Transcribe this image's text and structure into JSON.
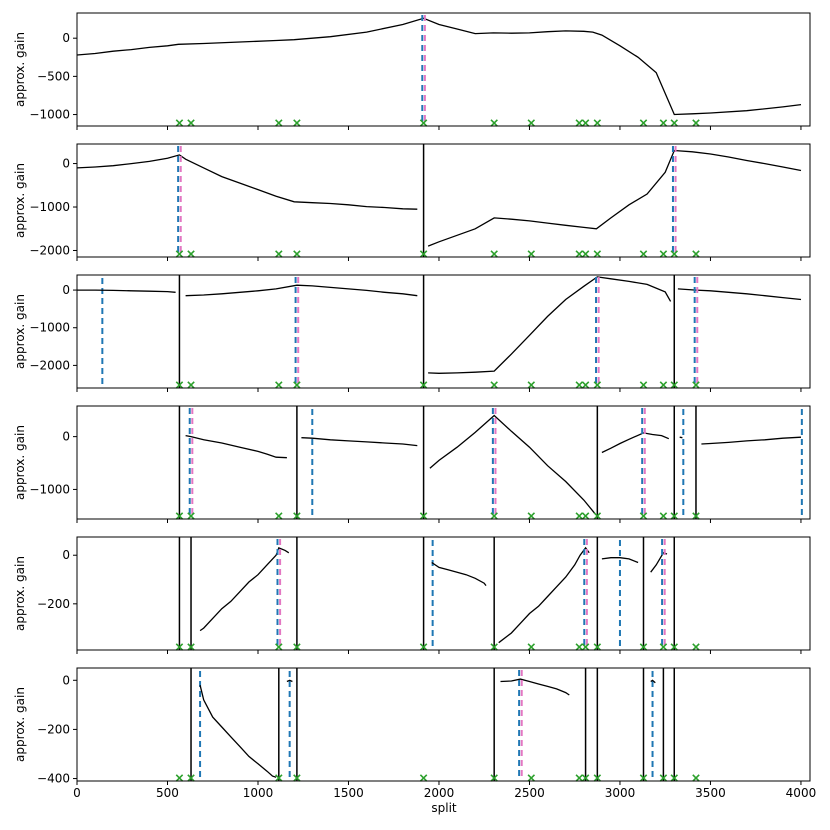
{
  "chart_data": {
    "type": "line",
    "xlabel": "split",
    "ylabel": "approx. gain",
    "xlim": [
      0,
      4050
    ],
    "xticks": [
      0,
      500,
      1000,
      1500,
      2000,
      2500,
      3000,
      3500,
      4000
    ],
    "xtick_labels": [
      "0",
      "500",
      "1000",
      "1500",
      "2000",
      "2500",
      "3000",
      "3500",
      "4000"
    ],
    "candidate_markers_x": [
      566,
      630,
      1115,
      1215,
      1915,
      2305,
      2510,
      2775,
      2810,
      2875,
      3130,
      3240,
      3300,
      3420
    ],
    "colors": {
      "gain_line": "#000000",
      "segment_boundary": "#000000",
      "blue_dashed": "#1f77b4",
      "pink_dashed": "#e377c2",
      "marker": "#2ca02c"
    },
    "panels": [
      {
        "ylim": [
          -1150,
          330
        ],
        "yticks": [
          0,
          -500,
          -1000
        ],
        "ytick_labels": [
          "0",
          "−500",
          "−1000"
        ],
        "boundaries": [],
        "selected": [
          1915
        ],
        "blue_only": [],
        "series": [
          {
            "x": [
              0,
              100,
              200,
              300,
              400,
              500,
              560,
              700,
              900,
              1100,
              1200,
              1400,
              1600,
              1800,
              1915,
              2000,
              2100,
              2200,
              2300,
              2400,
              2500,
              2600,
              2700,
              2800,
              2850,
              2900,
              3000,
              3100,
              3200,
              3300,
              3400,
              3500,
              3700,
              3900,
              4000
            ],
            "y": [
              -220,
              -200,
              -170,
              -150,
              -120,
              -100,
              -80,
              -70,
              -50,
              -30,
              -20,
              20,
              80,
              180,
              260,
              180,
              120,
              60,
              70,
              65,
              70,
              85,
              95,
              90,
              80,
              40,
              -100,
              -250,
              -450,
              -1000,
              -990,
              -980,
              -950,
              -900,
              -870
            ]
          }
        ]
      },
      {
        "ylim": [
          -2150,
          450
        ],
        "yticks": [
          0,
          -1000,
          -2000
        ],
        "ytick_labels": [
          "0",
          "−1000",
          "−2000"
        ],
        "boundaries": [
          1915
        ],
        "selected": [
          566,
          3300
        ],
        "blue_only": [],
        "series": [
          {
            "x": [
              0,
              100,
              200,
              300,
              400,
              500,
              566,
              600,
              700,
              800,
              900,
              1000,
              1100,
              1200,
              1300,
              1400,
              1500,
              1600,
              1700,
              1800,
              1880
            ],
            "y": [
              -100,
              -80,
              -50,
              0,
              50,
              120,
              200,
              100,
              -100,
              -300,
              -450,
              -600,
              -750,
              -880,
              -900,
              -920,
              -950,
              -990,
              -1010,
              -1040,
              -1050
            ]
          },
          {
            "x": [
              1940,
              2000,
              2100,
              2200,
              2305,
              2400,
              2500,
              2600,
              2700,
              2800,
              2870,
              2950,
              3050,
              3150,
              3250,
              3300,
              3400,
              3500,
              3600,
              3700,
              3800,
              3900,
              4000
            ],
            "y": [
              -1900,
              -1800,
              -1650,
              -1500,
              -1250,
              -1280,
              -1320,
              -1370,
              -1420,
              -1470,
              -1500,
              -1250,
              -950,
              -700,
              -200,
              300,
              270,
              220,
              150,
              70,
              0,
              -80,
              -160
            ]
          }
        ]
      },
      {
        "ylim": [
          -2600,
          400
        ],
        "yticks": [
          0,
          -1000,
          -2000
        ],
        "ytick_labels": [
          "0",
          "−1000",
          "−2000"
        ],
        "boundaries": [
          566,
          1915,
          3300
        ],
        "selected": [
          1215,
          2875,
          3420
        ],
        "blue_only": [
          140
        ],
        "series": [
          {
            "x": [
              0,
              100,
              200,
              300,
              400,
              500,
              545
            ],
            "y": [
              0,
              0,
              -10,
              -20,
              -30,
              -40,
              -60
            ]
          },
          {
            "x": [
              600,
              700,
              800,
              900,
              1000,
              1100,
              1215,
              1300,
              1400,
              1500,
              1600,
              1700,
              1800,
              1880
            ],
            "y": [
              -150,
              -130,
              -100,
              -60,
              -20,
              30,
              130,
              110,
              70,
              30,
              -10,
              -60,
              -100,
              -150
            ]
          },
          {
            "x": [
              1940,
              2000,
              2100,
              2200,
              2305,
              2400,
              2500,
              2600,
              2700,
              2800,
              2875,
              2950,
              3050,
              3150,
              3250,
              3280
            ],
            "y": [
              -2200,
              -2210,
              -2200,
              -2180,
              -2150,
              -1700,
              -1200,
              -700,
              -250,
              100,
              350,
              300,
              230,
              150,
              -50,
              -300
            ]
          },
          {
            "x": [
              3320,
              3420,
              3500,
              3600,
              3700,
              3800,
              3900,
              4000
            ],
            "y": [
              30,
              0,
              -20,
              -60,
              -100,
              -150,
              -200,
              -250
            ]
          }
        ]
      },
      {
        "ylim": [
          -1560,
          580
        ],
        "yticks": [
          0,
          -1000
        ],
        "ytick_labels": [
          "0",
          "−1000"
        ],
        "boundaries": [
          566,
          1215,
          1915,
          2875,
          3300,
          3420
        ],
        "selected": [
          630,
          2305,
          3130
        ],
        "blue_only": [
          1300,
          3350,
          4005
        ],
        "series": [
          {
            "x": [
              600,
              630,
              700,
              800,
              900,
              1000,
              1050,
              1100,
              1160
            ],
            "y": [
              20,
              0,
              -60,
              -120,
              -200,
              -280,
              -330,
              -390,
              -400
            ]
          },
          {
            "x": [
              1240,
              1300,
              1400,
              1500,
              1600,
              1700,
              1800,
              1880
            ],
            "y": [
              -20,
              -30,
              -60,
              -80,
              -100,
              -120,
              -140,
              -170
            ]
          },
          {
            "x": [
              1950,
              2000,
              2100,
              2200,
              2305,
              2400,
              2500,
              2600,
              2700,
              2800,
              2860
            ],
            "y": [
              -600,
              -450,
              -200,
              80,
              400,
              100,
              -200,
              -550,
              -850,
              -1200,
              -1450
            ]
          },
          {
            "x": [
              2900,
              2950,
              3000,
              3050,
              3130,
              3180,
              3230,
              3270
            ],
            "y": [
              -300,
              -220,
              -130,
              -50,
              70,
              40,
              20,
              -40
            ]
          },
          {
            "x": [
              3330,
              3345
            ],
            "y": [
              -10,
              -20
            ]
          },
          {
            "x": [
              3450,
              3500,
              3600,
              3700,
              3800,
              3900,
              4000
            ],
            "y": [
              -140,
              -130,
              -110,
              -80,
              -60,
              -30,
              -10
            ]
          }
        ]
      },
      {
        "ylim": [
          -390,
          75
        ],
        "yticks": [
          0,
          -200
        ],
        "ytick_labels": [
          "0",
          "−200"
        ],
        "boundaries": [
          566,
          630,
          1215,
          1915,
          2305,
          2875,
          3130,
          3300
        ],
        "selected": [
          1115,
          2810,
          3240
        ],
        "blue_only": [
          1965,
          3000
        ],
        "series": [
          {
            "x": [
              680,
              700,
              750,
              800,
              850,
              900,
              950,
              1000,
              1050,
              1100,
              1115,
              1150,
              1170
            ],
            "y": [
              -310,
              -300,
              -260,
              -220,
              -190,
              -150,
              -110,
              -80,
              -40,
              0,
              30,
              20,
              10
            ]
          },
          {
            "x": [
              1960,
              2000,
              2050,
              2100,
              2150,
              2200,
              2250,
              2260
            ],
            "y": [
              -30,
              -50,
              -60,
              -70,
              -80,
              -95,
              -115,
              -125
            ]
          },
          {
            "x": [
              2330,
              2400,
              2450,
              2500,
              2550,
              2600,
              2650,
              2700,
              2750,
              2780,
              2810,
              2830
            ],
            "y": [
              -360,
              -320,
              -280,
              -240,
              -210,
              -170,
              -130,
              -90,
              -40,
              0,
              30,
              10
            ]
          },
          {
            "x": [
              2900,
              2950,
              3000,
              3050,
              3100
            ],
            "y": [
              -15,
              -10,
              -10,
              -15,
              -30
            ]
          },
          {
            "x": [
              3170,
              3200,
              3240,
              3260
            ],
            "y": [
              -70,
              -40,
              10,
              5
            ]
          }
        ]
      },
      {
        "ylim": [
          -410,
          50
        ],
        "yticks": [
          0,
          -200,
          -400
        ],
        "ytick_labels": [
          "0",
          "−200",
          "−400"
        ],
        "boundaries": [
          630,
          1115,
          1215,
          2305,
          2810,
          2875,
          3130,
          3240,
          3300
        ],
        "selected": [
          2450
        ],
        "blue_only": [
          680,
          1175,
          3180
        ],
        "series": [
          {
            "x": [
              680,
              700,
              750,
              800,
              850,
              900,
              950,
              1000,
              1050,
              1080,
              1100
            ],
            "y": [
              -20,
              -80,
              -150,
              -190,
              -230,
              -270,
              -310,
              -340,
              -370,
              -390,
              -395
            ]
          },
          {
            "x": [
              1160,
              1175,
              1190
            ],
            "y": [
              -5,
              0,
              -5
            ]
          },
          {
            "x": [
              2340,
              2400,
              2450,
              2500,
              2550,
              2600,
              2650,
              2700,
              2720
            ],
            "y": [
              -5,
              -3,
              5,
              -5,
              -15,
              -25,
              -35,
              -50,
              -60
            ]
          },
          {
            "x": [
              3170,
              3180,
              3195
            ],
            "y": [
              -5,
              0,
              -10
            ]
          }
        ]
      }
    ]
  }
}
